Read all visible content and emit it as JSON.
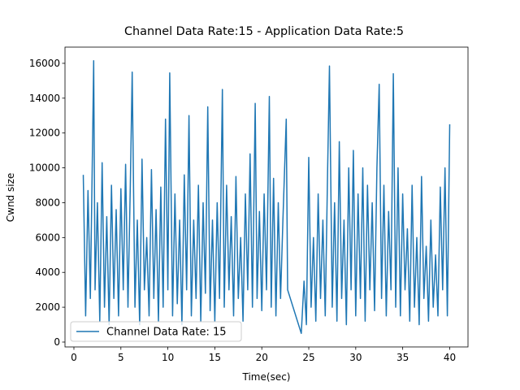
{
  "chart_data": {
    "type": "line",
    "title": "Channel Data Rate:15 - Application Data Rate:5",
    "x_label": "Time(sec)",
    "y_label": "Cwnd size",
    "xlim": [
      -0.95,
      41.95
    ],
    "ylim": [
      -280,
      16930
    ],
    "xticks": [
      0,
      5,
      10,
      15,
      20,
      25,
      30,
      35,
      40
    ],
    "yticks": [
      0,
      2000,
      4000,
      6000,
      8000,
      10000,
      12000,
      14000,
      16000
    ],
    "legend_position": "lower left",
    "series": [
      {
        "name": "Channel Data Rate: 15",
        "color": "#1f77b4",
        "x": [
          1.0,
          1.25,
          1.5,
          1.75,
          2.0,
          2.1,
          2.25,
          2.5,
          2.75,
          3.0,
          3.25,
          3.5,
          3.75,
          4.0,
          4.25,
          4.5,
          4.75,
          5.0,
          5.25,
          5.5,
          5.75,
          6.0,
          6.2,
          6.5,
          6.75,
          7.0,
          7.25,
          7.5,
          7.75,
          8.0,
          8.25,
          8.5,
          8.75,
          9.0,
          9.25,
          9.5,
          9.75,
          10.0,
          10.2,
          10.5,
          10.75,
          11.0,
          11.25,
          11.5,
          11.75,
          12.0,
          12.25,
          12.5,
          12.75,
          13.0,
          13.25,
          13.5,
          13.75,
          14.0,
          14.25,
          14.5,
          14.75,
          15.0,
          15.25,
          15.5,
          15.8,
          16.0,
          16.25,
          16.5,
          16.75,
          17.0,
          17.25,
          17.5,
          17.75,
          18.0,
          18.25,
          18.5,
          18.75,
          19.0,
          19.3,
          19.5,
          19.75,
          20.0,
          20.25,
          20.5,
          20.8,
          21.0,
          21.25,
          21.5,
          21.75,
          22.0,
          22.25,
          22.6,
          22.75,
          24.2,
          24.5,
          24.75,
          25.0,
          25.25,
          25.5,
          25.75,
          26.0,
          26.25,
          26.5,
          26.75,
          27.0,
          27.2,
          27.5,
          27.75,
          28.0,
          28.25,
          28.5,
          28.75,
          29.0,
          29.25,
          29.5,
          29.75,
          30.0,
          30.25,
          30.5,
          30.75,
          31.0,
          31.25,
          31.5,
          31.75,
          32.0,
          32.25,
          32.5,
          32.75,
          33.0,
          33.25,
          33.5,
          33.75,
          34.0,
          34.25,
          34.5,
          34.75,
          35.0,
          35.25,
          35.5,
          35.75,
          36.0,
          36.25,
          36.5,
          36.75,
          37.0,
          37.25,
          37.5,
          37.75,
          38.0,
          38.25,
          38.5,
          38.75,
          39.0,
          39.25,
          39.5,
          39.75,
          40.0
        ],
        "values": [
          9600,
          1500,
          8700,
          2500,
          12000,
          16150,
          3000,
          8000,
          1200,
          10300,
          2000,
          7200,
          1000,
          9000,
          2500,
          7600,
          1500,
          8800,
          3000,
          10200,
          2000,
          9000,
          15500,
          2000,
          7000,
          1000,
          10500,
          3000,
          6000,
          1500,
          9900,
          2500,
          7600,
          1200,
          8900,
          2000,
          12800,
          3000,
          15450,
          1500,
          8500,
          2200,
          7000,
          1000,
          9600,
          3000,
          13000,
          1500,
          7000,
          2500,
          9000,
          1200,
          8000,
          2800,
          13500,
          1800,
          7000,
          1200,
          8000,
          2500,
          14500,
          2000,
          9000,
          3000,
          7200,
          1500,
          9500,
          2500,
          6000,
          1200,
          8500,
          3000,
          10800,
          2000,
          13700,
          2500,
          7500,
          1800,
          8500,
          3000,
          14100,
          2000,
          9400,
          1500,
          8000,
          2500,
          7000,
          12800,
          3000,
          500,
          3500,
          1000,
          10600,
          2000,
          6000,
          1200,
          8500,
          2500,
          7000,
          1500,
          9800,
          15850,
          2000,
          8000,
          1200,
          11500,
          2500,
          7000,
          1000,
          10000,
          3000,
          11000,
          1500,
          8500,
          2500,
          10000,
          1200,
          9000,
          3000,
          8000,
          1800,
          10000,
          14800,
          2500,
          9000,
          1500,
          7500,
          3000,
          15400,
          2000,
          10000,
          1500,
          8500,
          3000,
          6500,
          1200,
          9000,
          2000,
          6000,
          1000,
          9500,
          2500,
          5500,
          1200,
          7000,
          2000,
          5000,
          1500,
          8900,
          3000,
          10000,
          1500,
          12500
        ]
      }
    ]
  }
}
